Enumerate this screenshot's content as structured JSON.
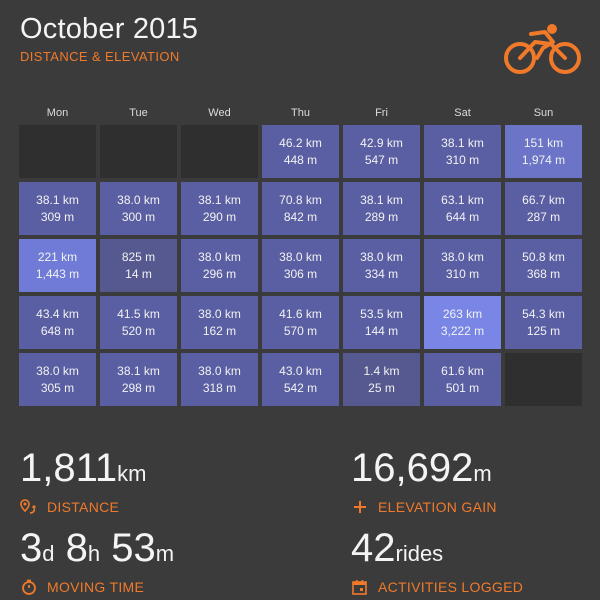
{
  "header": {
    "title": "October 2015",
    "subtitle": "DISTANCE & ELEVATION",
    "logo_icon": "cyclist-icon",
    "accent_color": "#f07a2a"
  },
  "calendar": {
    "day_headers": [
      "Mon",
      "Tue",
      "Wed",
      "Thu",
      "Fri",
      "Sat",
      "Sun"
    ],
    "cells": [
      {
        "distance": "",
        "elevation": "",
        "empty": true
      },
      {
        "distance": "",
        "elevation": "",
        "empty": true
      },
      {
        "distance": "",
        "elevation": "",
        "empty": true
      },
      {
        "distance": "46.2 km",
        "elevation": "448 m",
        "color": "#5a5fa3"
      },
      {
        "distance": "42.9 km",
        "elevation": "547 m",
        "color": "#5a5fa3"
      },
      {
        "distance": "38.1 km",
        "elevation": "310 m",
        "color": "#5a5fa3"
      },
      {
        "distance": "151 km",
        "elevation": "1,974 m",
        "color": "#6b74c6"
      },
      {
        "distance": "38.1 km",
        "elevation": "309 m",
        "color": "#5a5fa3"
      },
      {
        "distance": "38.0 km",
        "elevation": "300 m",
        "color": "#5a5fa3"
      },
      {
        "distance": "38.1 km",
        "elevation": "290 m",
        "color": "#5a5fa3"
      },
      {
        "distance": "70.8 km",
        "elevation": "842 m",
        "color": "#5a5fa3"
      },
      {
        "distance": "38.1 km",
        "elevation": "289 m",
        "color": "#5a5fa3"
      },
      {
        "distance": "63.1 km",
        "elevation": "644 m",
        "color": "#5a5fa3"
      },
      {
        "distance": "66.7 km",
        "elevation": "287 m",
        "color": "#5a5fa3"
      },
      {
        "distance": "221 km",
        "elevation": "1,443 m",
        "color": "#6f7bd6"
      },
      {
        "distance": "825 m",
        "elevation": "14 m",
        "color": "#55598f"
      },
      {
        "distance": "38.0 km",
        "elevation": "296 m",
        "color": "#5a5fa3"
      },
      {
        "distance": "38.0 km",
        "elevation": "306 m",
        "color": "#5a5fa3"
      },
      {
        "distance": "38.0 km",
        "elevation": "334 m",
        "color": "#5a5fa3"
      },
      {
        "distance": "38.0 km",
        "elevation": "310 m",
        "color": "#5a5fa3"
      },
      {
        "distance": "50.8 km",
        "elevation": "368 m",
        "color": "#5a5fa3"
      },
      {
        "distance": "43.4 km",
        "elevation": "648 m",
        "color": "#5a5fa3"
      },
      {
        "distance": "41.5 km",
        "elevation": "520 m",
        "color": "#5a5fa3"
      },
      {
        "distance": "38.0 km",
        "elevation": "162 m",
        "color": "#5a5fa3"
      },
      {
        "distance": "41.6 km",
        "elevation": "570 m",
        "color": "#5a5fa3"
      },
      {
        "distance": "53.5 km",
        "elevation": "144 m",
        "color": "#5a5fa3"
      },
      {
        "distance": "263 km",
        "elevation": "3,222 m",
        "color": "#7986e6"
      },
      {
        "distance": "54.3 km",
        "elevation": "125 m",
        "color": "#5a5fa3"
      },
      {
        "distance": "38.0 km",
        "elevation": "305 m",
        "color": "#5a5fa3"
      },
      {
        "distance": "38.1 km",
        "elevation": "298 m",
        "color": "#5a5fa3"
      },
      {
        "distance": "38.0 km",
        "elevation": "318 m",
        "color": "#5a5fa3"
      },
      {
        "distance": "43.0 km",
        "elevation": "542 m",
        "color": "#5a5fa3"
      },
      {
        "distance": "1.4 km",
        "elevation": "25 m",
        "color": "#55598f"
      },
      {
        "distance": "61.6 km",
        "elevation": "501 m",
        "color": "#5a5fa3"
      },
      {
        "distance": "",
        "elevation": "",
        "empty": true
      }
    ]
  },
  "stats": {
    "distance": {
      "value": "1,811",
      "unit": "km",
      "label": "DISTANCE",
      "icon": "route-pin-icon"
    },
    "elevation": {
      "value": "16,692",
      "unit": "m",
      "label": "ELEVATION GAIN",
      "icon": "plus-icon"
    },
    "moving_time": {
      "days": "3",
      "days_unit": "d",
      "hours": "8",
      "hours_unit": "h",
      "minutes": "53",
      "minutes_unit": "m",
      "label": "MOVING TIME",
      "icon": "stopwatch-icon"
    },
    "rides": {
      "value": "42",
      "unit": "rides",
      "label": "ACTIVITIES LOGGED",
      "icon": "calendar-icon"
    }
  }
}
